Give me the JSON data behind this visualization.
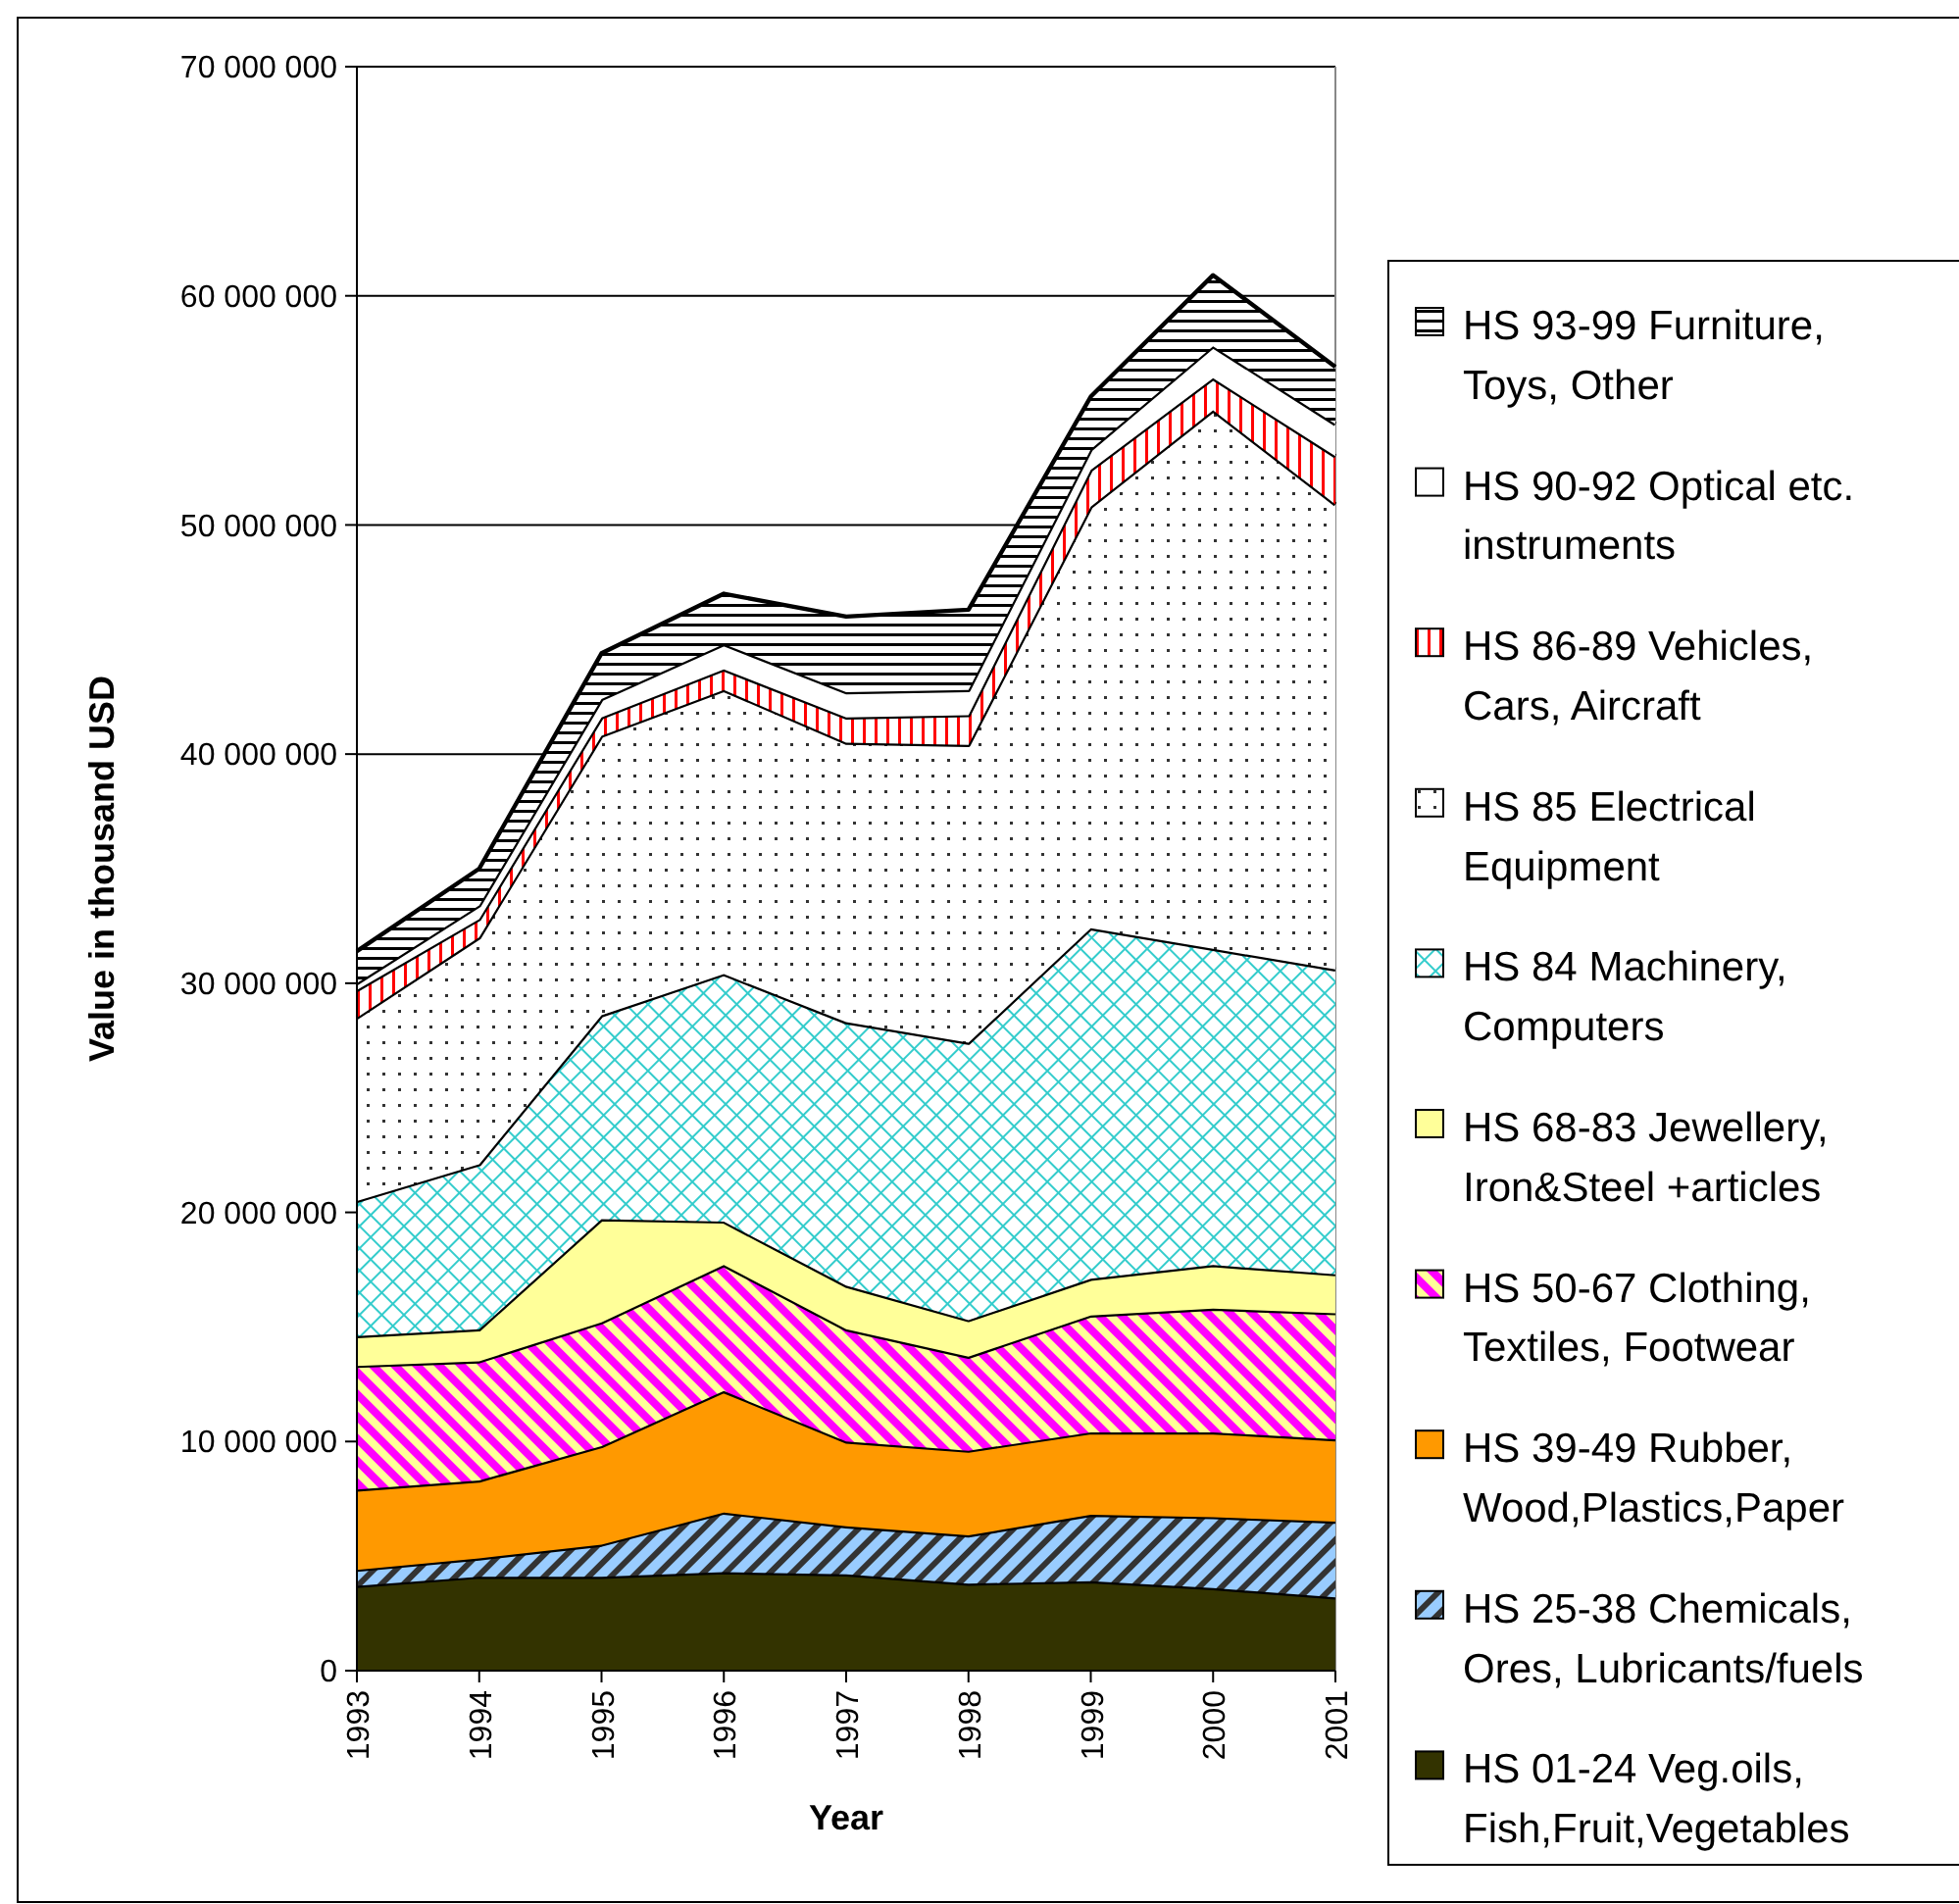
{
  "chart_data": {
    "type": "area",
    "stacked": true,
    "xlabel": "Year",
    "ylabel": "Value in thousand USD",
    "categories": [
      "1993",
      "1994",
      "1995",
      "1996",
      "1997",
      "1998",
      "1999",
      "2000",
      "2001"
    ],
    "ylim": [
      0,
      70000000
    ],
    "yticks": [
      {
        "value": 0,
        "label": "0"
      },
      {
        "value": 10000000,
        "label": "10 000 000"
      },
      {
        "value": 20000000,
        "label": "20 000 000"
      },
      {
        "value": 30000000,
        "label": "30 000 000"
      },
      {
        "value": 40000000,
        "label": "40 000 000"
      },
      {
        "value": 50000000,
        "label": "50 000 000"
      },
      {
        "value": 60000000,
        "label": "60 000 000"
      },
      {
        "value": 70000000,
        "label": "70 000 000"
      }
    ],
    "grid": "y",
    "legend": "right",
    "series": [
      {
        "name": "HS 01-24 Veg.oils, Fish,Fruit,Vegetables",
        "color": "#333300",
        "values": [
          3700000,
          4100000,
          4100000,
          4300000,
          4200000,
          3800000,
          3900000,
          3600000,
          3200000
        ]
      },
      {
        "name": "HS 25-38 Chemicals, Ores, Lubricants/fuels",
        "color": "#99ccff",
        "values": [
          700000,
          800000,
          1400000,
          2600000,
          2100000,
          2100000,
          2900000,
          3100000,
          3300000
        ]
      },
      {
        "name": "HS 39-49 Rubber, Wood,Plastics,Paper",
        "color": "#ff9900",
        "values": [
          3500000,
          3400000,
          4300000,
          5300000,
          3700000,
          3700000,
          3600000,
          3700000,
          3600000
        ]
      },
      {
        "name": "HS 50-67 Clothing, Textiles, Footwear",
        "color": "#ff00ff",
        "values": [
          5400000,
          5200000,
          5400000,
          5500000,
          4900000,
          4100000,
          5100000,
          5400000,
          5500000
        ]
      },
      {
        "name": "HS 68-83 Jewellery, Iron&Steel +articles",
        "color": "#ffff99",
        "values": [
          1300000,
          1400000,
          4500000,
          1900000,
          1900000,
          1600000,
          1600000,
          1900000,
          1700000
        ]
      },
      {
        "name": "HS 84 Machinery, Computers",
        "color": "#33cccc",
        "values": [
          5900000,
          7200000,
          8900000,
          10800000,
          11500000,
          12100000,
          15300000,
          13800000,
          13300000
        ]
      },
      {
        "name": "HS 85 Electrical Equipment",
        "color": "#333333",
        "values": [
          8000000,
          9900000,
          12200000,
          12400000,
          12200000,
          13000000,
          18400000,
          23500000,
          20300000
        ]
      },
      {
        "name": "HS 86-89 Vehicles, Cars, Aircraft",
        "color": "#ff0000",
        "values": [
          1200000,
          800000,
          800000,
          900000,
          1100000,
          1300000,
          1600000,
          1400000,
          2100000
        ]
      },
      {
        "name": "HS 90-92 Optical etc. instruments",
        "color": "#ffffff",
        "values": [
          300000,
          600000,
          800000,
          1100000,
          1100000,
          1100000,
          900000,
          1400000,
          1400000
        ]
      },
      {
        "name": "HS 93-99 Furniture, Toys, Other",
        "color": "#000000",
        "values": [
          1400000,
          1600000,
          2000000,
          2200000,
          3300000,
          3500000,
          2300000,
          3100000,
          2500000
        ]
      }
    ]
  }
}
